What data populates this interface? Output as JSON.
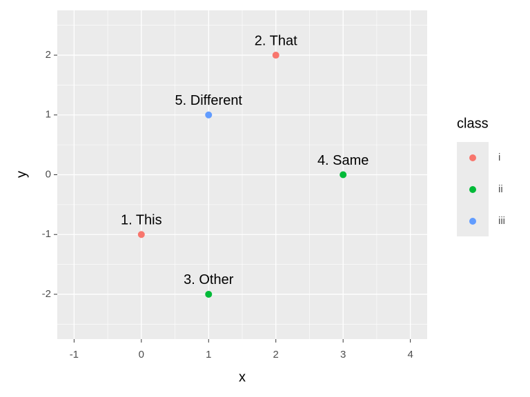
{
  "chart_data": {
    "type": "scatter",
    "x_label": "x",
    "y_label": "y",
    "xlim": [
      -1.25,
      4.25
    ],
    "xticks": [
      -1,
      0,
      1,
      2,
      3,
      4
    ],
    "ylim": [
      -2.75,
      2.75
    ],
    "yticks": [
      -2,
      -1,
      0,
      1,
      2
    ],
    "grid": true,
    "legend_title": "class",
    "legend_position": "right",
    "series": [
      {
        "name": "i",
        "color": "#f8766d",
        "x": [
          0,
          2
        ],
        "values": [
          -1,
          2
        ],
        "labels": [
          "1. This",
          "2. That"
        ]
      },
      {
        "name": "ii",
        "color": "#00ba38",
        "x": [
          1,
          3
        ],
        "values": [
          -2,
          0
        ],
        "labels": [
          "3. Other",
          "4. Same"
        ]
      },
      {
        "name": "iii",
        "color": "#619cff",
        "x": [
          1
        ],
        "values": [
          1
        ],
        "labels": [
          "5. Different"
        ]
      }
    ]
  }
}
